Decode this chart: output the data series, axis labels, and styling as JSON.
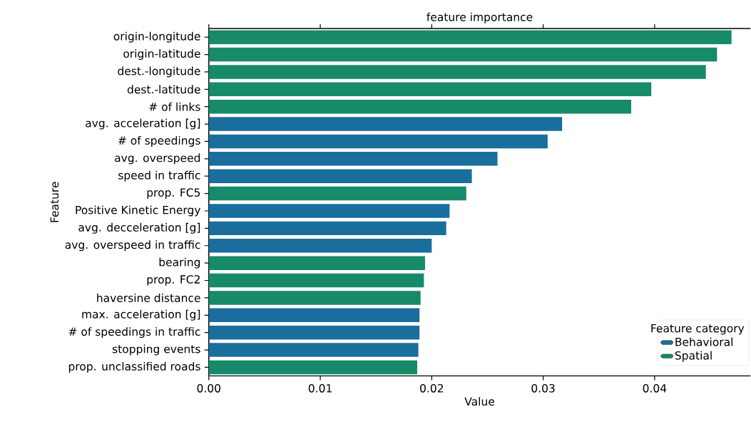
{
  "chart_data": {
    "type": "bar",
    "orientation": "horizontal",
    "title": "feature importance",
    "xlabel": "Value",
    "ylabel": "Feature",
    "categories": [
      "origin-longitude",
      "origin-latitude",
      "dest.-longitude",
      "dest.-latitude",
      "# of links",
      "avg. acceleration [g]",
      "# of speedings",
      "avg. overspeed",
      "speed in traffic",
      "prop. FC5",
      "Positive Kinetic Energy",
      "avg. decceleration [g]",
      "avg. overspeed in traffic",
      "bearing",
      "prop. FC2",
      "haversine distance",
      "max. acceleration [g]",
      "# of speedings in traffic",
      "stopping events",
      "prop. unclassified roads"
    ],
    "series": [
      {
        "name": "Behavioral",
        "color": "#1a6e9e",
        "values": [
          null,
          null,
          null,
          null,
          null,
          0.0317,
          0.0304,
          0.0259,
          0.0236,
          null,
          0.0216,
          0.0213,
          0.02,
          null,
          null,
          null,
          0.0189,
          0.0189,
          0.0188,
          null
        ]
      },
      {
        "name": "Spatial",
        "color": "#178a6a",
        "values": [
          0.0469,
          0.0456,
          0.0446,
          0.0397,
          0.0379,
          null,
          null,
          null,
          null,
          0.0231,
          null,
          null,
          null,
          0.0194,
          0.0193,
          0.019,
          null,
          null,
          null,
          0.0187
        ]
      }
    ],
    "xlim": [
      0,
      0.0486
    ],
    "xticks": [
      {
        "value": 0,
        "label": "0.00"
      },
      {
        "value": 0.01,
        "label": "0.01"
      },
      {
        "value": 0.02,
        "label": "0.02"
      },
      {
        "value": 0.03,
        "label": "0.03"
      },
      {
        "value": 0.04,
        "label": "0.04"
      }
    ],
    "legend": "bottom right",
    "legend_title": "Feature category"
  }
}
